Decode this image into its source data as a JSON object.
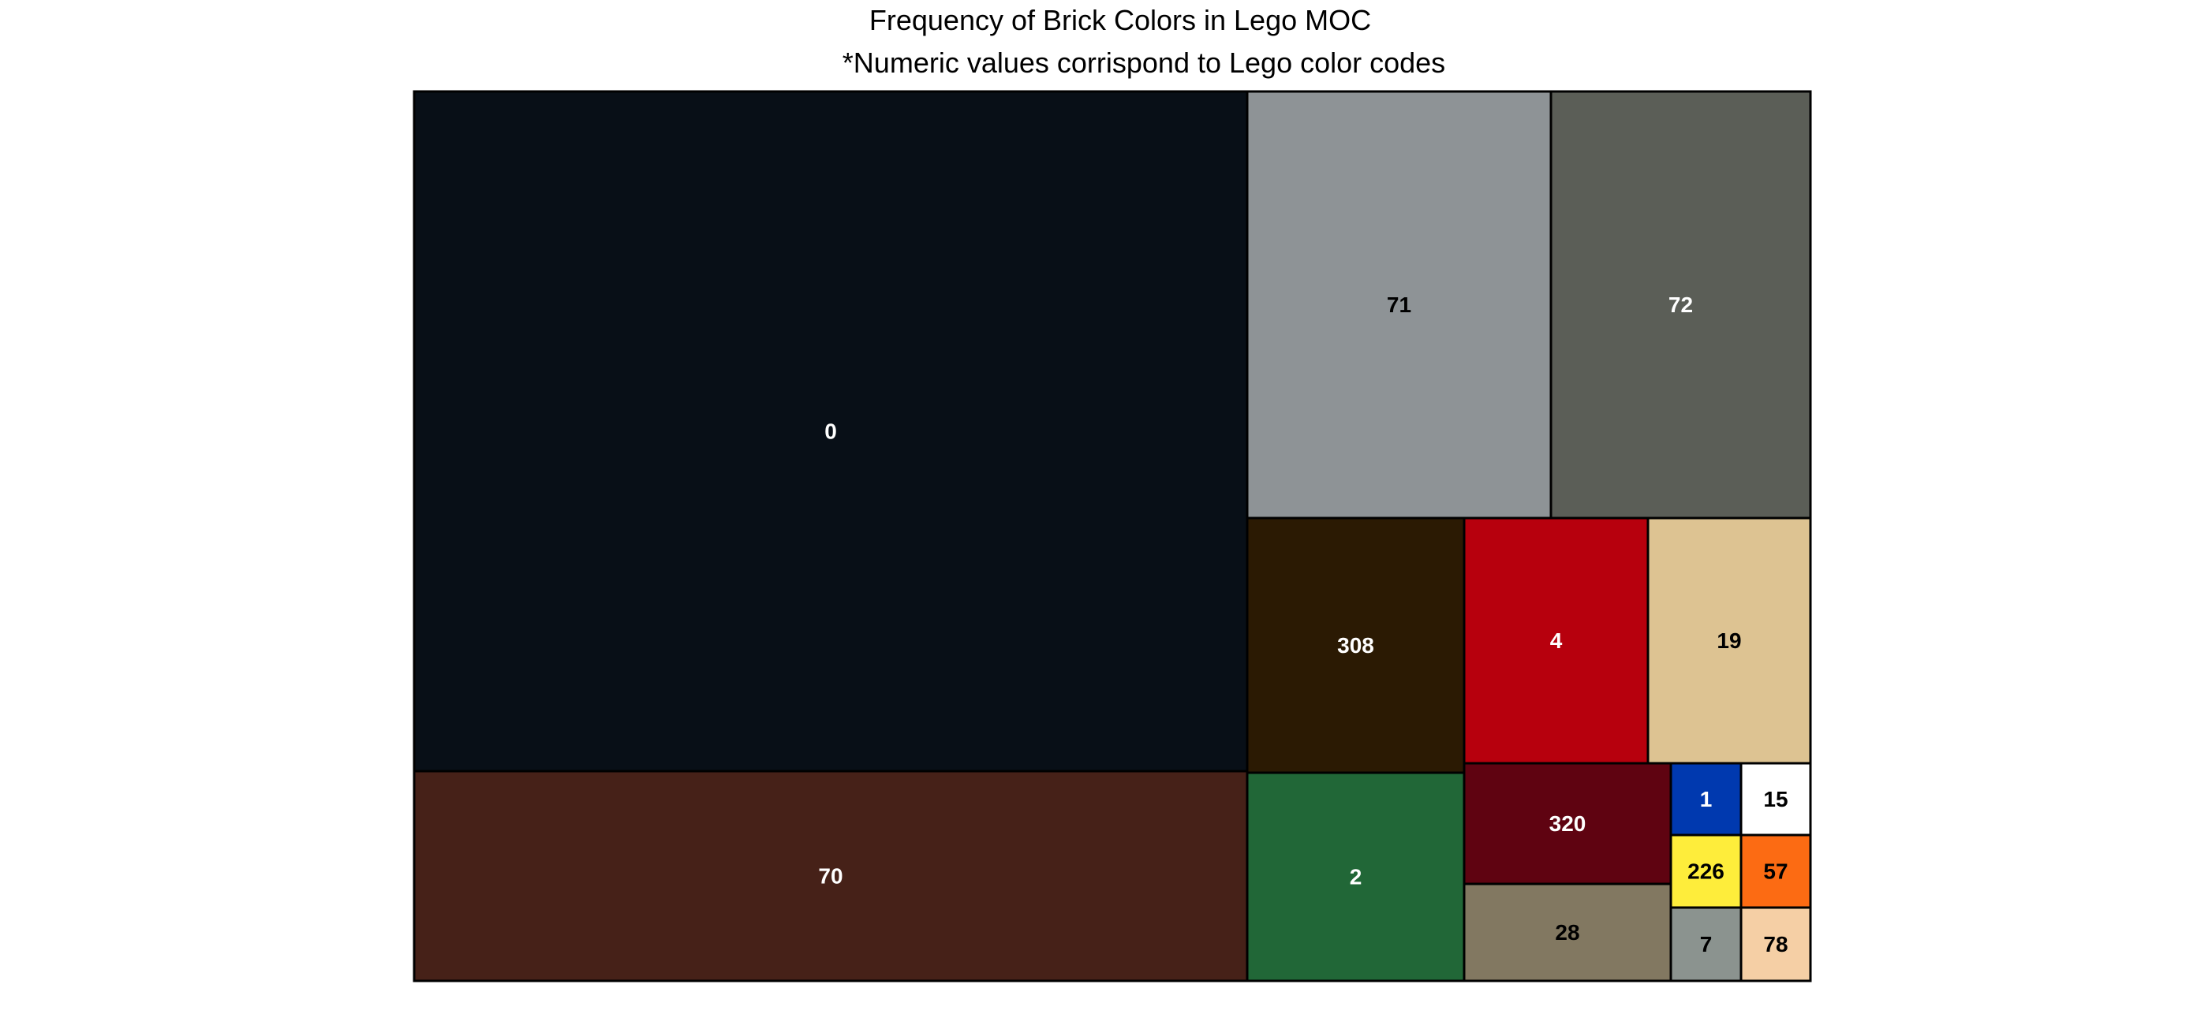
{
  "chart_data": {
    "type": "treemap",
    "title": "Frequency of Brick Colors in Lego MOC",
    "subtitle": "*Numeric values corrispond to Lego color codes",
    "cells": [
      {
        "label": "0",
        "value": 281.0,
        "color": "#080F17",
        "label_color": "#FFFFFF"
      },
      {
        "label": "70",
        "value": 87.3,
        "color": "#462118",
        "label_color": "#FFFFFF"
      },
      {
        "label": "71",
        "value": 64.3,
        "color": "#8E9396",
        "label_color": "#000000"
      },
      {
        "label": "72",
        "value": 54.7,
        "color": "#5B5E57",
        "label_color": "#FFFFFF"
      },
      {
        "label": "308",
        "value": 32.8,
        "color": "#2B1A03",
        "label_color": "#FFFFFF"
      },
      {
        "label": "4",
        "value": 26.5,
        "color": "#B7000D",
        "label_color": "#FFFFFF"
      },
      {
        "label": "19",
        "value": 23.4,
        "color": "#DDC392",
        "label_color": "#000000"
      },
      {
        "label": "2",
        "value": 26.0,
        "color": "#216737",
        "label_color": "#FFFFFF"
      },
      {
        "label": "320",
        "value": 14.5,
        "color": "#5F0311",
        "label_color": "#FFFFFF"
      },
      {
        "label": "28",
        "value": 14.2,
        "color": "#827861",
        "label_color": "#000000"
      },
      {
        "label": "1",
        "value": 2.9,
        "color": "#0039AF",
        "label_color": "#FFFFFF"
      },
      {
        "label": "15",
        "value": 2.9,
        "color": "#FFFFFF",
        "label_color": "#000000"
      },
      {
        "label": "226",
        "value": 2.9,
        "color": "#FEED3B",
        "label_color": "#000000"
      },
      {
        "label": "57",
        "value": 2.9,
        "color": "#FC6B13",
        "label_color": "#000000"
      },
      {
        "label": "7",
        "value": 2.9,
        "color": "#8B938F",
        "label_color": "#000000"
      },
      {
        "label": "78",
        "value": 2.9,
        "color": "#F5CFA5",
        "label_color": "#000000"
      }
    ]
  }
}
